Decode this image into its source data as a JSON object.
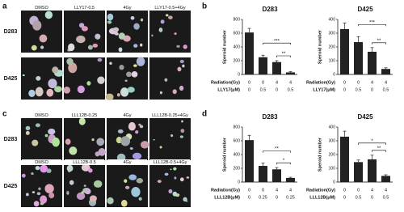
{
  "panel_letters": [
    "a",
    "b",
    "c",
    "d"
  ],
  "image_panels": [
    {
      "column_labels": [
        [
          "DMSO",
          "LLY17-0.5",
          "4Gy",
          "LLY17-0.5+4Gy"
        ]
      ],
      "rows": [
        "D283",
        "D425"
      ]
    },
    {
      "column_labels": [
        [
          "DMSO",
          "LLL12B-0.25",
          "4Gy",
          "LLL12B-0.25+4Gy"
        ],
        [
          "DMSO",
          "LLL12B-0.5",
          "4Gy",
          "LLL12B-0.5+4Gy"
        ]
      ],
      "rows": [
        "D283",
        "D425"
      ]
    }
  ],
  "chart_data": [
    {
      "type": "bar",
      "title": "D283",
      "ylabel": "Speroid number",
      "values": [
        610,
        250,
        180,
        30
      ],
      "errors": [
        60,
        30,
        20,
        10
      ],
      "color": "#222222",
      "ylim": [
        0,
        800
      ],
      "yticks": [
        0,
        200,
        400,
        600,
        800
      ],
      "rows": [
        {
          "name": "Radiation(Gy)",
          "values": [
            0,
            0,
            4,
            4
          ]
        },
        {
          "name": "LLY17(μM)",
          "values": [
            0,
            0.5,
            0,
            0.5
          ]
        }
      ],
      "significance": [
        {
          "label": "***",
          "pair": [
            1,
            3
          ]
        },
        {
          "label": "**",
          "pair": [
            2,
            3
          ]
        }
      ]
    },
    {
      "type": "bar",
      "title": "D425",
      "ylabel": "Speroid number",
      "values": [
        330,
        235,
        165,
        40
      ],
      "errors": [
        45,
        40,
        30,
        8
      ],
      "color": "#222222",
      "ylim": [
        0,
        400
      ],
      "yticks": [
        0,
        100,
        200,
        300,
        400
      ],
      "rows": [
        {
          "name": "Radiation(Gy)",
          "values": [
            0,
            0,
            4,
            4
          ]
        },
        {
          "name": "LLY17(μM)",
          "values": [
            0,
            0.5,
            0,
            0.5
          ]
        }
      ],
      "significance": [
        {
          "label": "***",
          "pair": [
            1,
            3
          ]
        },
        {
          "label": "**",
          "pair": [
            2,
            3
          ]
        }
      ]
    },
    {
      "type": "bar",
      "title": "D283",
      "ylabel": "Speroid number",
      "values": [
        610,
        235,
        185,
        60
      ],
      "errors": [
        70,
        40,
        25,
        10
      ],
      "color": "#222222",
      "ylim": [
        0,
        800
      ],
      "yticks": [
        0,
        200,
        400,
        600,
        800
      ],
      "rows": [
        {
          "name": "Radiation(Gy)",
          "values": [
            0,
            0,
            4,
            4
          ]
        },
        {
          "name": "LLL12B(μM)",
          "values": [
            0,
            0.25,
            0,
            0.25
          ]
        }
      ],
      "significance": [
        {
          "label": "**",
          "pair": [
            1,
            3
          ]
        },
        {
          "label": "*",
          "pair": [
            2,
            3
          ]
        }
      ]
    },
    {
      "type": "bar",
      "title": "D425",
      "ylabel": "Speroid number",
      "values": [
        330,
        145,
        165,
        45
      ],
      "errors": [
        40,
        15,
        30,
        8
      ],
      "color": "#222222",
      "ylim": [
        0,
        400
      ],
      "yticks": [
        0,
        100,
        200,
        300,
        400
      ],
      "rows": [
        {
          "name": "Radiation(Gy)",
          "values": [
            0,
            0,
            4,
            4
          ]
        },
        {
          "name": "LLL12B(μM)",
          "values": [
            0,
            0.5,
            0,
            0.5
          ]
        }
      ],
      "significance": [
        {
          "label": "*",
          "pair": [
            1,
            3
          ]
        },
        {
          "label": "**",
          "pair": [
            2,
            3
          ]
        }
      ]
    }
  ]
}
